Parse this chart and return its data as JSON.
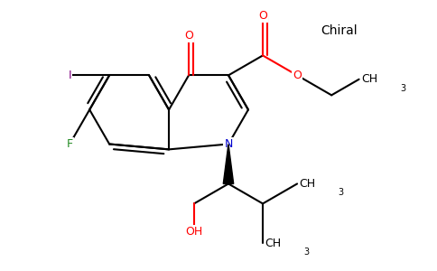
{
  "bg_color": "#ffffff",
  "figsize": [
    4.84,
    3.0
  ],
  "dpi": 100,
  "chiral_text": "Chiral",
  "atom_colors": {
    "O": "#ff0000",
    "N": "#0000cd",
    "F": "#228b22",
    "I": "#800080",
    "C": "#000000"
  },
  "line_color": "#000000",
  "lw": 1.5,
  "fs": 9.0,
  "fs_sub": 7.0
}
